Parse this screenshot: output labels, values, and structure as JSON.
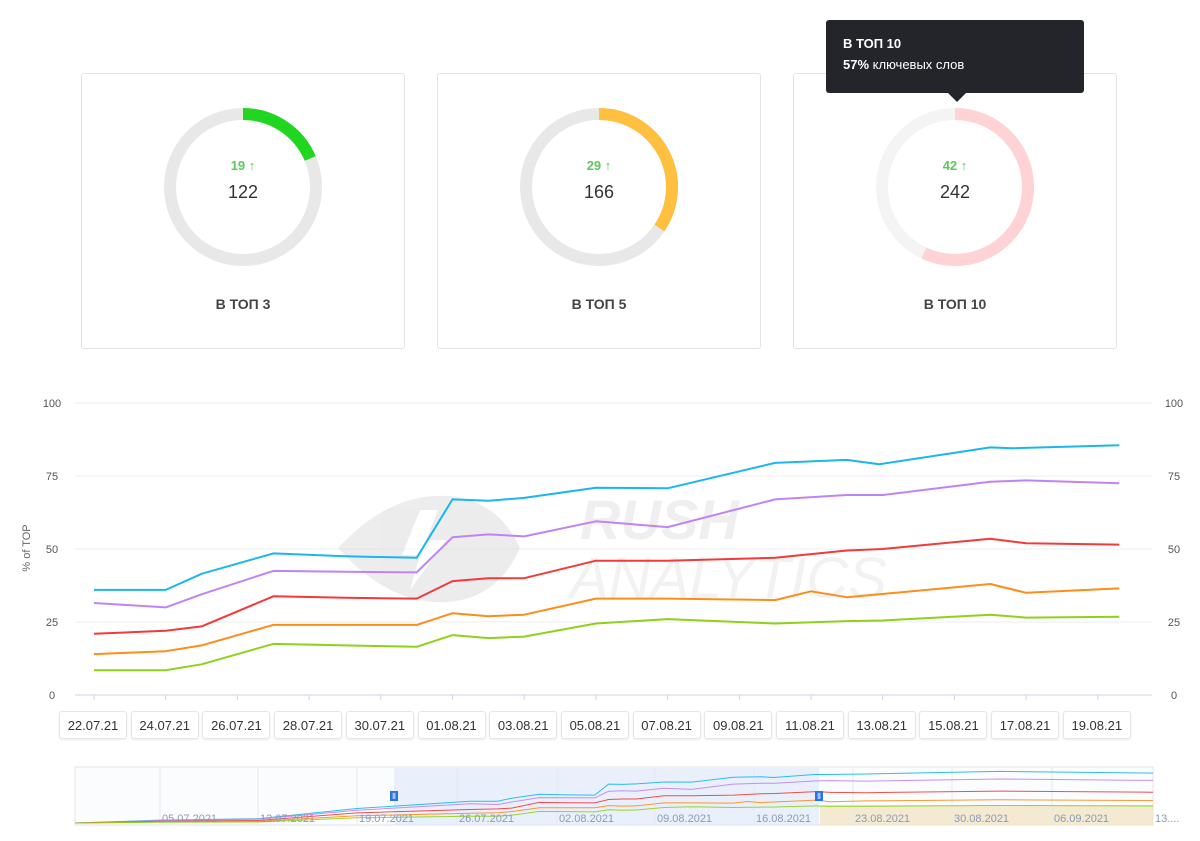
{
  "cards": [
    {
      "label": "В ТОП 3",
      "count": "122",
      "delta": "19",
      "color": "#21d621",
      "progress": 0.186
    },
    {
      "label": "В ТОП 5",
      "count": "166",
      "delta": "29",
      "color": "#ffbf3f",
      "progress": 0.345
    },
    {
      "label": "В ТОП 10",
      "count": "242",
      "delta": "42",
      "color": "#ffd3d6",
      "progress": 0.57
    }
  ],
  "tooltip": {
    "title": "В ТОП 10",
    "percent": "57%",
    "text": "ключевых слов"
  },
  "watermark": {
    "line1": "RUSH",
    "line2": "ANALYTICS"
  },
  "chart_data": {
    "type": "line",
    "ylabel": "% of TOP",
    "ylim": [
      0,
      100
    ],
    "yticks": [
      0,
      25,
      50,
      75,
      100
    ],
    "grid": true,
    "x_labels": [
      "22.07.21",
      "24.07.21",
      "26.07.21",
      "28.07.21",
      "30.07.21",
      "01.08.21",
      "03.08.21",
      "05.08.21",
      "07.08.21",
      "09.08.21",
      "11.08.21",
      "13.08.21",
      "15.08.21",
      "17.08.21",
      "19.08.21"
    ],
    "series": [
      {
        "color": "#1ab6ec",
        "points": [
          [
            0,
            36
          ],
          [
            1,
            36
          ],
          [
            1.5,
            41.5
          ],
          [
            2.5,
            48.5
          ],
          [
            3.5,
            47.5
          ],
          [
            4.5,
            47
          ],
          [
            5,
            67
          ],
          [
            5.5,
            66.5
          ],
          [
            6,
            67.5
          ],
          [
            7,
            71
          ],
          [
            8,
            70.8
          ],
          [
            9.5,
            79.5
          ],
          [
            10.5,
            80.5
          ],
          [
            10.95,
            79
          ],
          [
            12.5,
            84.8
          ],
          [
            12.8,
            84.5
          ],
          [
            14.3,
            85.5
          ]
        ]
      },
      {
        "color": "#c084f2",
        "points": [
          [
            0,
            31.5
          ],
          [
            1,
            30
          ],
          [
            1.5,
            34.5
          ],
          [
            2.5,
            42.5
          ],
          [
            3.5,
            42.2
          ],
          [
            4.5,
            42
          ],
          [
            5,
            54
          ],
          [
            5.5,
            55
          ],
          [
            6,
            54.3
          ],
          [
            7,
            59.5
          ],
          [
            8,
            57.5
          ],
          [
            9.5,
            67
          ],
          [
            10.5,
            68.5
          ],
          [
            11,
            68.5
          ],
          [
            12.5,
            73
          ],
          [
            13,
            73.5
          ],
          [
            14.3,
            72.5
          ]
        ]
      },
      {
        "color": "#f23a3a",
        "points": [
          [
            0,
            21
          ],
          [
            1,
            22
          ],
          [
            1.5,
            23.5
          ],
          [
            2.5,
            33.8
          ],
          [
            3.5,
            33.3
          ],
          [
            4.5,
            33
          ],
          [
            5,
            39
          ],
          [
            5.5,
            40
          ],
          [
            6,
            40
          ],
          [
            7,
            46
          ],
          [
            8,
            46
          ],
          [
            9.5,
            47
          ],
          [
            10.5,
            49.5
          ],
          [
            11,
            50
          ],
          [
            12.5,
            53.5
          ],
          [
            13,
            52
          ],
          [
            14.3,
            51.5
          ]
        ]
      },
      {
        "color": "#ff8c1a",
        "points": [
          [
            0,
            14
          ],
          [
            1,
            15
          ],
          [
            1.5,
            17
          ],
          [
            2.5,
            24
          ],
          [
            3.5,
            24
          ],
          [
            4.5,
            24
          ],
          [
            5,
            28
          ],
          [
            5.5,
            27
          ],
          [
            6,
            27.5
          ],
          [
            7,
            33
          ],
          [
            8,
            33
          ],
          [
            9.5,
            32.5
          ],
          [
            10,
            35.5
          ],
          [
            10.5,
            33.5
          ],
          [
            12.5,
            38
          ],
          [
            13,
            35
          ],
          [
            14.3,
            36.5
          ]
        ]
      },
      {
        "color": "#8fd11a",
        "points": [
          [
            0,
            8.5
          ],
          [
            1,
            8.5
          ],
          [
            1.5,
            10.5
          ],
          [
            2.5,
            17.5
          ],
          [
            3.5,
            17
          ],
          [
            4.5,
            16.5
          ],
          [
            5,
            20.5
          ],
          [
            5.5,
            19.5
          ],
          [
            6,
            20
          ],
          [
            7,
            24.5
          ],
          [
            8,
            26
          ],
          [
            9.5,
            24.5
          ],
          [
            10.5,
            25.3
          ],
          [
            11,
            25.5
          ],
          [
            12.5,
            27.5
          ],
          [
            13,
            26.5
          ],
          [
            14.3,
            26.8
          ]
        ]
      }
    ]
  },
  "navigator": {
    "labels": [
      "05.07.2021",
      "12.07.2021",
      "19.07.2021",
      "26.07.2021",
      "02.08.2021",
      "09.08.2021",
      "16.08.2021",
      "23.08.2021",
      "30.08.2021",
      "06.09.2021",
      "13...."
    ],
    "handle_icon": "drag-handle-icon"
  }
}
